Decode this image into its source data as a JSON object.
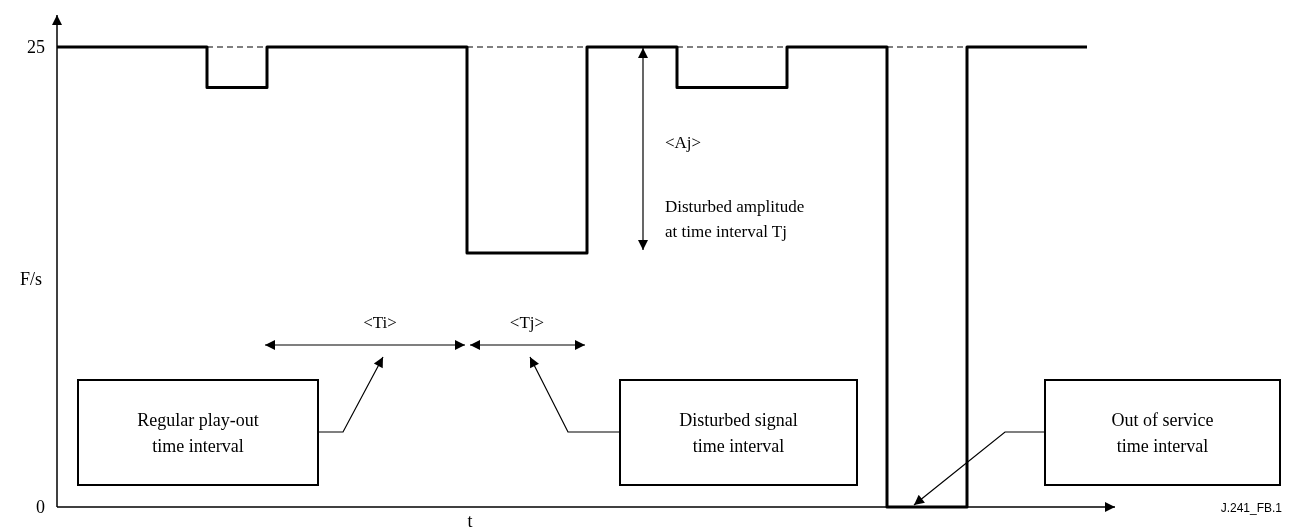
{
  "chart_data": {
    "type": "step",
    "xlabel": "t",
    "ylabel": "F/s",
    "categories": [
      null,
      null,
      null,
      null,
      null,
      null,
      null,
      null,
      null,
      null,
      null,
      null,
      null,
      null,
      null,
      null,
      null,
      null,
      null,
      null,
      null,
      null,
      null,
      null,
      null,
      null,
      null,
      null,
      null,
      null,
      null,
      null,
      null,
      null,
      null,
      null,
      null,
      null,
      null,
      null,
      null,
      null,
      null,
      null,
      null,
      null,
      null,
      null,
      null,
      null,
      null,
      null,
      null,
      null,
      null,
      null,
      null,
      null,
      null,
      null,
      null,
      null,
      null,
      null,
      null,
      null,
      null,
      null,
      null,
      null,
      null,
      null,
      null,
      null,
      null,
      null,
      null,
      null,
      null,
      null,
      null,
      null,
      null,
      null,
      null,
      null,
      null,
      null,
      null,
      null,
      null,
      null,
      null,
      null,
      null,
      null,
      null,
      null,
      null,
      null,
      null,
      null,
      null,
      null
    ],
    "values": [
      25,
      25,
      25,
      25,
      25,
      25,
      25,
      25,
      25,
      25,
      25,
      25,
      25,
      25,
      25,
      22.8,
      22.8,
      22.8,
      22.8,
      22.8,
      22.8,
      25,
      25,
      25,
      25,
      25,
      25,
      25,
      25,
      25,
      25,
      25,
      25,
      25,
      25,
      25,
      25,
      25,
      25,
      25,
      25,
      13.8,
      13.8,
      13.8,
      13.8,
      13.8,
      13.8,
      13.8,
      13.8,
      13.8,
      13.8,
      13.8,
      13.8,
      25,
      25,
      25,
      25,
      25,
      25,
      25,
      25,
      25,
      22.8,
      22.8,
      22.8,
      22.8,
      22.8,
      22.8,
      22.8,
      22.8,
      22.8,
      22.8,
      22.8,
      25,
      25,
      25,
      25,
      25,
      25,
      25,
      25,
      25,
      25,
      0,
      0,
      0,
      0,
      0,
      0,
      0,
      0,
      25,
      25,
      25,
      25,
      25,
      25,
      25,
      25,
      25,
      25,
      25,
      25,
      25
    ],
    "color": "#000000",
    "ylim": [
      0,
      25
    ],
    "yticks": [
      0,
      25
    ],
    "tick_labels": "y",
    "ref_lines": [
      {
        "axis": "y",
        "value": 25,
        "line_style": "dashed",
        "color": "#000000"
      }
    ],
    "annotations": [
      "<Ti>",
      "<Tj>",
      "<Aj>",
      "Disturbed amplitude\nat time interval Tj",
      "Regular play-out\ntime interval",
      "Disturbed signal\ntime interval",
      "Out of service\ntime interval",
      "J.241_FB.1"
    ]
  }
}
